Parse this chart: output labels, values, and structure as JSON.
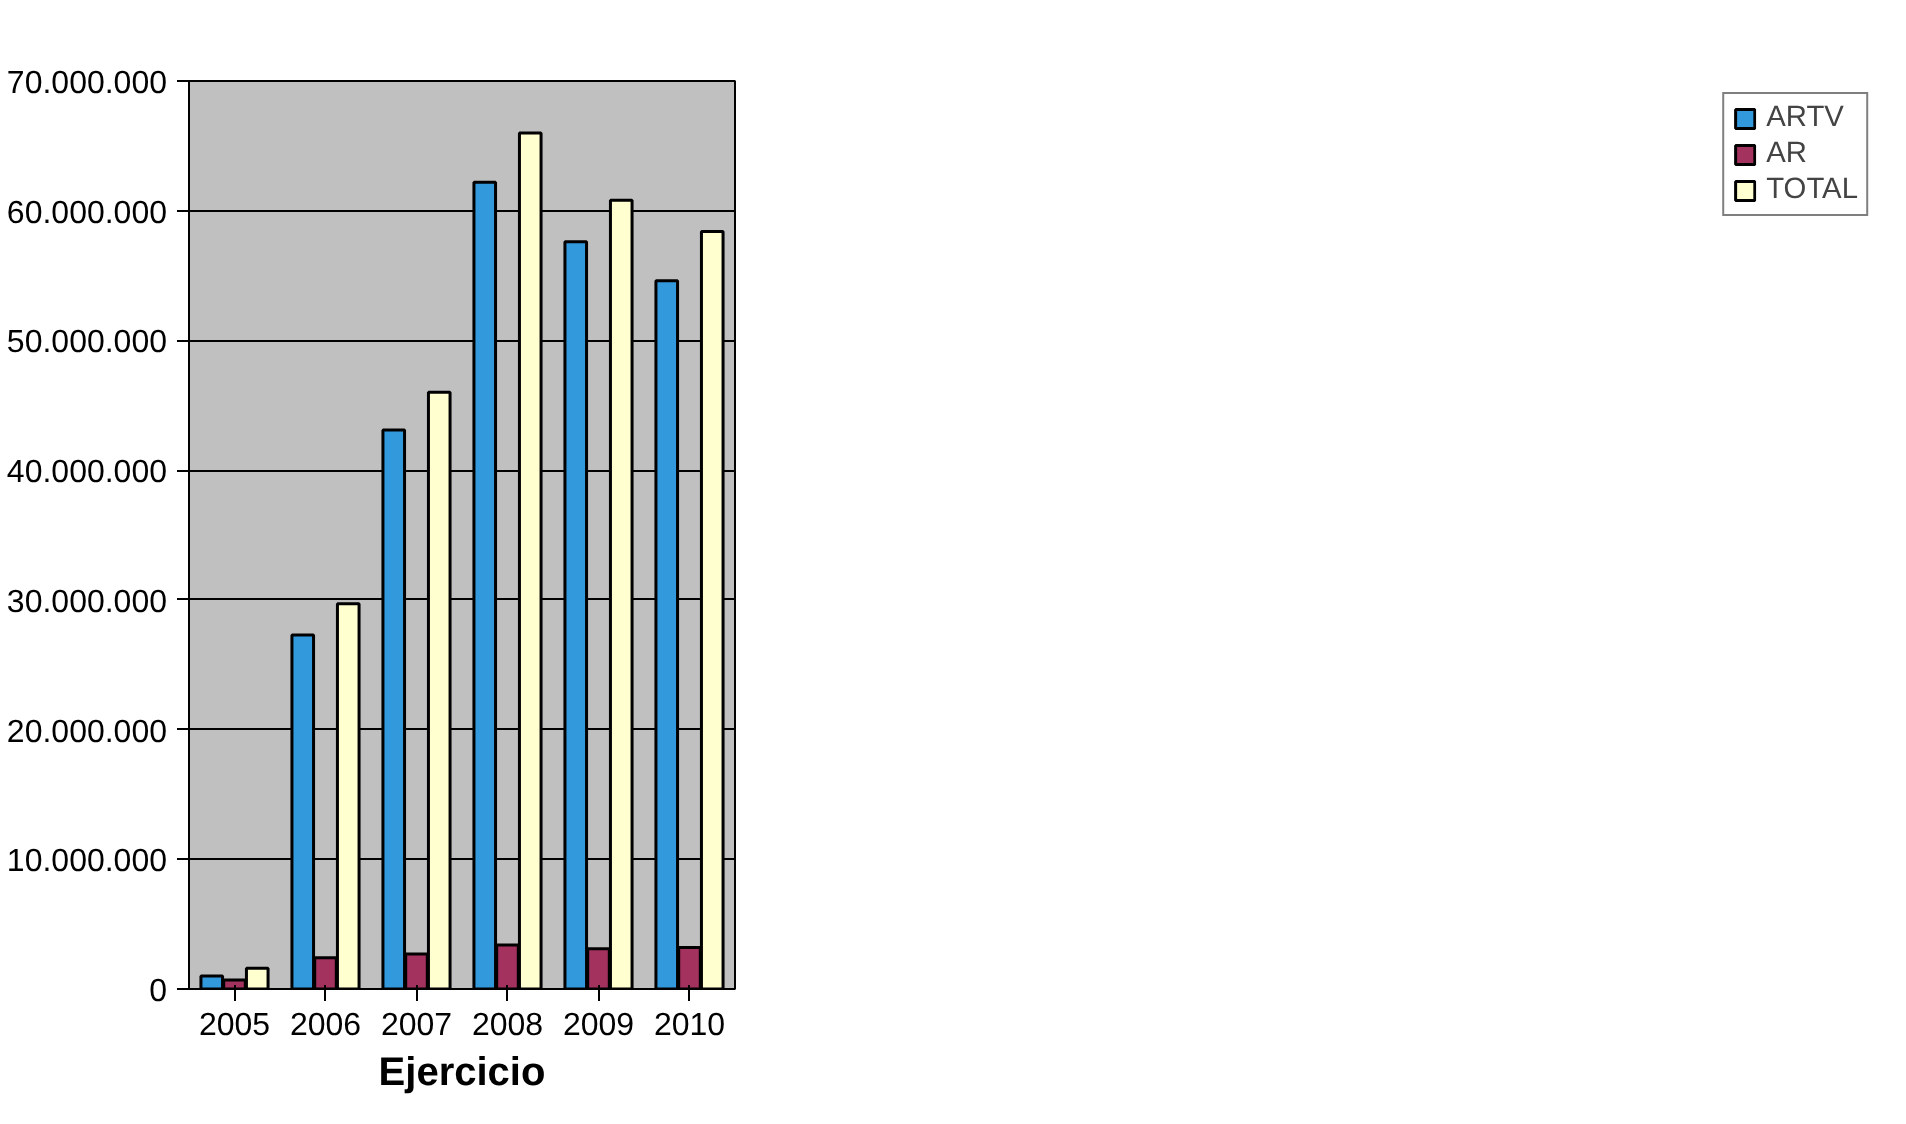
{
  "chart_data": {
    "type": "bar",
    "xlabel": "Ejercicio",
    "categories": [
      "2005",
      "2006",
      "2007",
      "2008",
      "2009",
      "2010"
    ],
    "series": [
      {
        "name": "ARTV",
        "color": "#3399dd",
        "values": [
          1000000,
          27300000,
          43100000,
          62200000,
          57600000,
          54600000
        ]
      },
      {
        "name": "AR",
        "color": "#a3325f",
        "values": [
          700000,
          2400000,
          2700000,
          3400000,
          3100000,
          3200000
        ]
      },
      {
        "name": "TOTAL",
        "color": "#ffffd0",
        "values": [
          1600000,
          29700000,
          46000000,
          66000000,
          60800000,
          58400000
        ]
      }
    ],
    "ylim": [
      0,
      70000000
    ],
    "yticks": [
      {
        "value": 0,
        "label": "0"
      },
      {
        "value": 10000000,
        "label": "10.000.000"
      },
      {
        "value": 20000000,
        "label": "20.000.000"
      },
      {
        "value": 30000000,
        "label": "30.000.000"
      },
      {
        "value": 40000000,
        "label": "40.000.000"
      },
      {
        "value": 50000000,
        "label": "50.000.000"
      },
      {
        "value": 60000000,
        "label": "60.000.000"
      },
      {
        "value": 70000000,
        "label": "70.000.000"
      }
    ],
    "grid": "y",
    "legend": "right"
  }
}
